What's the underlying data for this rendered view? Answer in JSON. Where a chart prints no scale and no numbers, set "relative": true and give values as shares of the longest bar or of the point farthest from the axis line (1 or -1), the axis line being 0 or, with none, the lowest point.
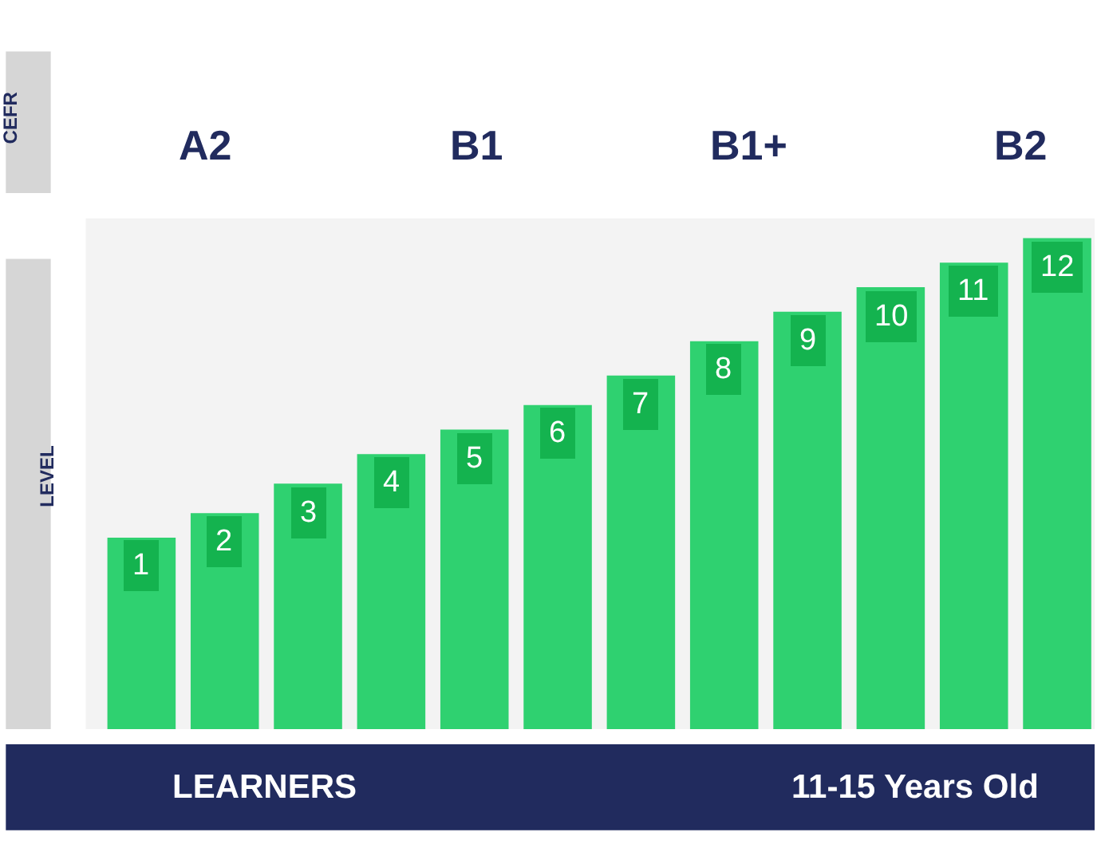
{
  "chart_data": {
    "type": "bar",
    "relative": true,
    "ylabel": "LEVEL",
    "categories": [
      "1",
      "2",
      "3",
      "4",
      "5",
      "6",
      "7",
      "8",
      "9",
      "10",
      "11",
      "12"
    ],
    "values": [
      0.39,
      0.44,
      0.5,
      0.56,
      0.61,
      0.66,
      0.72,
      0.79,
      0.85,
      0.9,
      0.95,
      1
    ],
    "color": "#2fd170",
    "annotations": [
      "CEFR",
      "A2",
      "B1",
      "B1+",
      "B2",
      "LEARNERS",
      "11-15 Years Old"
    ],
    "grid": false,
    "legend": false
  }
}
